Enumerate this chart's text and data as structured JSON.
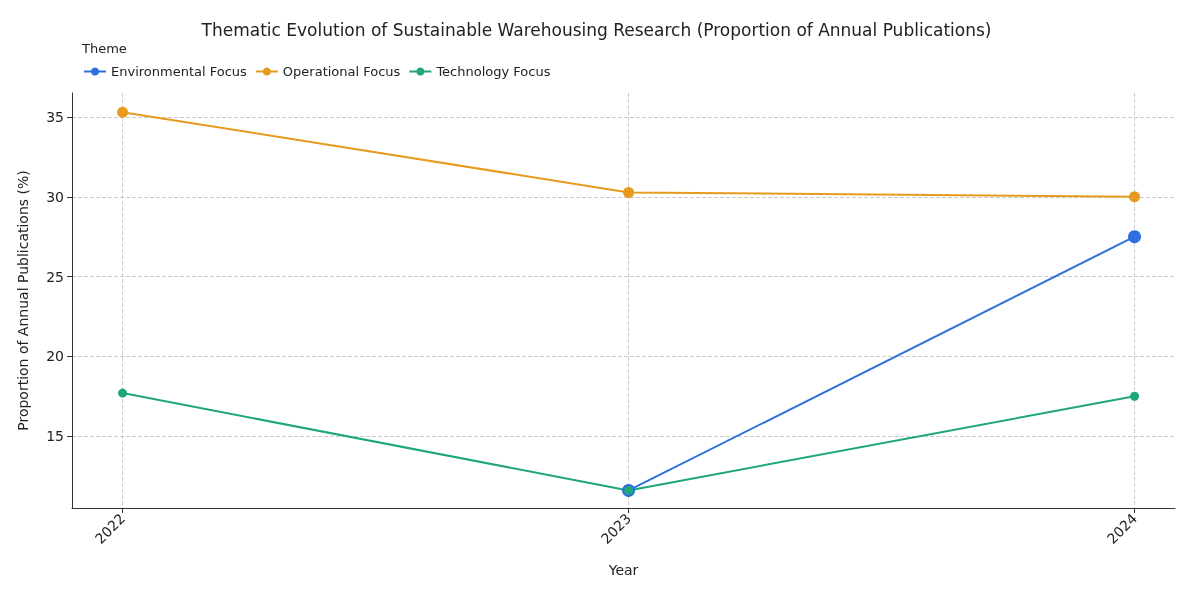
{
  "chart_data": {
    "type": "line",
    "title": "Thematic Evolution of Sustainable Warehousing Research (Proportion of Annual Publications)",
    "xlabel": "Year",
    "ylabel": "Proportion of Annual Publications (%)",
    "legend_title": "Theme",
    "x": [
      2022,
      2023,
      2024
    ],
    "series": [
      {
        "name": "Environmental Focus",
        "color": "#2e6fe0",
        "values": [
          null,
          11.6,
          27.5
        ]
      },
      {
        "name": "Operational Focus",
        "color": "#e69b1e",
        "values": [
          35.3,
          30.27,
          30.0
        ]
      },
      {
        "name": "Technology Focus",
        "color": "#1fa67a",
        "values": [
          17.7,
          11.6,
          17.5
        ]
      }
    ],
    "xlim": [
      2021.9,
      2024.08
    ],
    "xticks": [
      2022,
      2023,
      2024
    ],
    "ylim": [
      10.5,
      36.5
    ],
    "yticks": [
      15,
      20,
      25,
      30,
      35
    ],
    "grid": true,
    "legend": "top left",
    "marker": "circle",
    "line_style": "solid"
  }
}
